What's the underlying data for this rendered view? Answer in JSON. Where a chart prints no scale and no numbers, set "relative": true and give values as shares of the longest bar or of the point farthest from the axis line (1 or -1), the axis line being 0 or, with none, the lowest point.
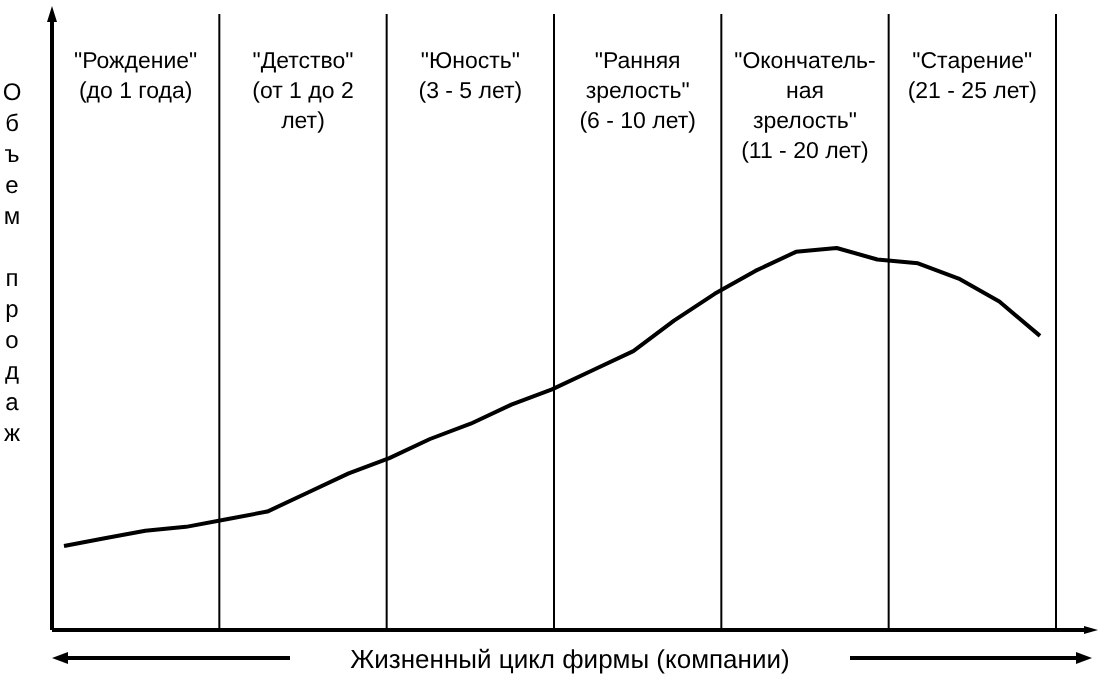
{
  "chart_data": {
    "type": "line",
    "relative": true,
    "xlabel": "Жизненный цикл фирмы (компании)",
    "ylabel": "Объем продаж",
    "marker": "none",
    "line_style": "solid",
    "categories": [
      null,
      null,
      null,
      null,
      null,
      null,
      null,
      null,
      null,
      null,
      null,
      null,
      null,
      null,
      null,
      null,
      null,
      null,
      null,
      null,
      null,
      null,
      null,
      null,
      null
    ],
    "series": [
      {
        "color": "#000000",
        "values": [
          0.22,
          0.24,
          0.26,
          0.27,
          0.29,
          0.31,
          0.36,
          0.41,
          0.45,
          0.5,
          0.54,
          0.59,
          0.63,
          0.68,
          0.73,
          0.81,
          0.88,
          0.94,
          0.99,
          1,
          0.97,
          0.96,
          0.92,
          0.86,
          0.77
        ]
      }
    ],
    "annotations": [
      "\"Рождение\"\n(до 1 года)",
      "\"Детство\"\n(от 1 до 2\nлет)",
      "\"Юность\"\n(3 - 5 лет)",
      "\"Ранняя\nзрелость\"\n(6 - 10 лет)",
      "\"Окончатель-\nная\nзрелость\"\n(11 - 20 лет)",
      "\"Старение\"\n(21 - 25 лет)"
    ]
  }
}
